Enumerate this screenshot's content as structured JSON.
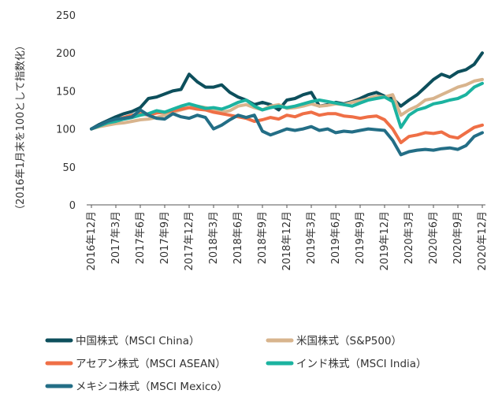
{
  "chart_data": {
    "type": "line",
    "title": "",
    "ylabel": "（2016年1月末を100として指数化）",
    "xlabel": "",
    "ylim": [
      0,
      250
    ],
    "yticks": [
      0,
      50,
      100,
      150,
      200,
      250
    ],
    "grid": false,
    "legend_position": "bottom",
    "x_tick_labels": [
      "2016年12月",
      "2017年3月",
      "2017年6月",
      "2017年9月",
      "2017年12月",
      "2018年3月",
      "2018年6月",
      "2018年9月",
      "2018年12月",
      "2019年3月",
      "2019年6月",
      "2019年9月",
      "2019年12月",
      "2020年3月",
      "2020年6月",
      "2020年9月",
      "2020年12月"
    ],
    "series": [
      {
        "name": "中国株式（MSCI China）",
        "color": "#0d4f5c",
        "values": [
          100,
          106,
          111,
          116,
          120,
          123,
          128,
          140,
          142,
          146,
          150,
          152,
          172,
          162,
          155,
          155,
          158,
          148,
          142,
          138,
          132,
          135,
          132,
          125,
          138,
          140,
          145,
          148,
          130,
          132,
          135,
          133,
          136,
          140,
          145,
          148,
          143,
          140,
          130,
          138,
          145,
          155,
          165,
          172,
          168,
          175,
          178,
          185,
          200
        ]
      },
      {
        "name": "米国株式（S&P500）",
        "color": "#d8b48d",
        "values": [
          100,
          103,
          105,
          107,
          108,
          110,
          112,
          113,
          115,
          118,
          122,
          125,
          128,
          130,
          128,
          125,
          122,
          124,
          130,
          132,
          128,
          125,
          130,
          132,
          127,
          128,
          130,
          133,
          130,
          131,
          133,
          132,
          135,
          137,
          140,
          143,
          142,
          145,
          118,
          125,
          130,
          138,
          140,
          145,
          150,
          155,
          158,
          163,
          165
        ]
      },
      {
        "name": "アセアン株式（MSCI ASEAN）",
        "color": "#ef6f46",
        "values": [
          100,
          104,
          108,
          112,
          115,
          118,
          120,
          118,
          121,
          122,
          124,
          126,
          128,
          126,
          125,
          122,
          120,
          118,
          116,
          114,
          110,
          112,
          115,
          113,
          118,
          116,
          120,
          122,
          118,
          120,
          120,
          117,
          116,
          114,
          116,
          117,
          112,
          100,
          82,
          90,
          92,
          95,
          94,
          96,
          90,
          88,
          95,
          102,
          105
        ]
      },
      {
        "name": "インド株式（MSCI India）",
        "color": "#1bb3a0",
        "values": [
          100,
          104,
          108,
          110,
          113,
          115,
          118,
          120,
          124,
          122,
          126,
          130,
          133,
          130,
          127,
          128,
          126,
          130,
          135,
          138,
          130,
          125,
          128,
          130,
          128,
          130,
          133,
          136,
          138,
          136,
          134,
          132,
          130,
          134,
          138,
          140,
          142,
          136,
          102,
          118,
          125,
          128,
          133,
          135,
          138,
          140,
          145,
          155,
          160
        ]
      },
      {
        "name": "メキシコ株式（MSCI Mexico）",
        "color": "#236e86",
        "values": [
          100,
          105,
          110,
          113,
          114,
          116,
          125,
          118,
          114,
          113,
          120,
          116,
          114,
          118,
          115,
          100,
          105,
          112,
          118,
          115,
          118,
          97,
          92,
          96,
          100,
          98,
          100,
          103,
          98,
          100,
          95,
          97,
          96,
          98,
          100,
          99,
          98,
          85,
          66,
          70,
          72,
          73,
          72,
          74,
          75,
          73,
          78,
          90,
          95
        ]
      }
    ]
  }
}
